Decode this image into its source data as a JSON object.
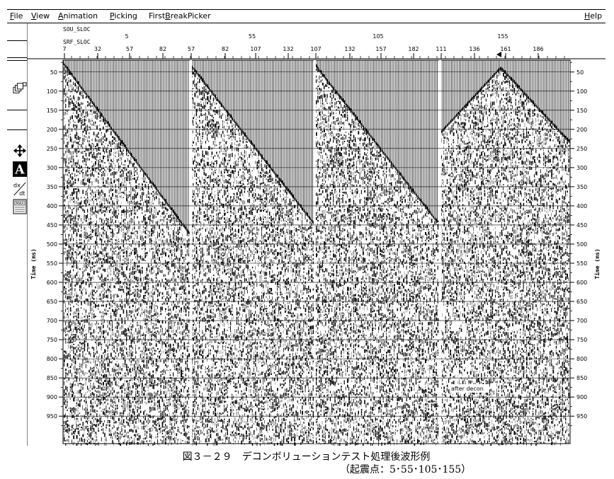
{
  "menu": {
    "file": {
      "u": "F",
      "rest": "ile"
    },
    "view": {
      "u": "V",
      "rest": "iew"
    },
    "animation": {
      "u": "A",
      "rest": "nimation"
    },
    "picking": {
      "u": "P",
      "rest": "icking"
    },
    "firstbreak": {
      "pre": "First",
      "u": "B",
      "rest": "reakPicker"
    },
    "help": {
      "u": "H",
      "rest": "elp"
    }
  },
  "tools": {
    "icons": [
      "windows-icon",
      "move-arrows-icon",
      "annotate-a-icon",
      "dxdt-icon",
      "max-icon"
    ],
    "dxdt_top": "dx",
    "dxdt_bottom": "dt",
    "max_label": "MAX"
  },
  "header": {
    "sou_label": "SOU_SLOC",
    "srf_label": "SRF_SLOC",
    "sou_ticks": [
      "5",
      "55",
      "105",
      "155"
    ],
    "srf_ticks": [
      "7",
      "32",
      "57",
      "82",
      "57",
      "82",
      "107",
      "132",
      "107",
      "132",
      "157",
      "182",
      "111",
      "136",
      "161",
      "186"
    ]
  },
  "time_axis": {
    "label_left": "Time (ms)",
    "label_right": "Time (ms)",
    "ticks": [
      50,
      100,
      150,
      200,
      250,
      300,
      350,
      400,
      450,
      500,
      550,
      600,
      650,
      700,
      750,
      800,
      850,
      900,
      950
    ],
    "max_ms": 1000
  },
  "annotation": "after decon",
  "caption_main": "図３－２９　デコンボリューションテスト処理後波形例",
  "caption_sub": "（起震点：5･55･105･155）"
}
